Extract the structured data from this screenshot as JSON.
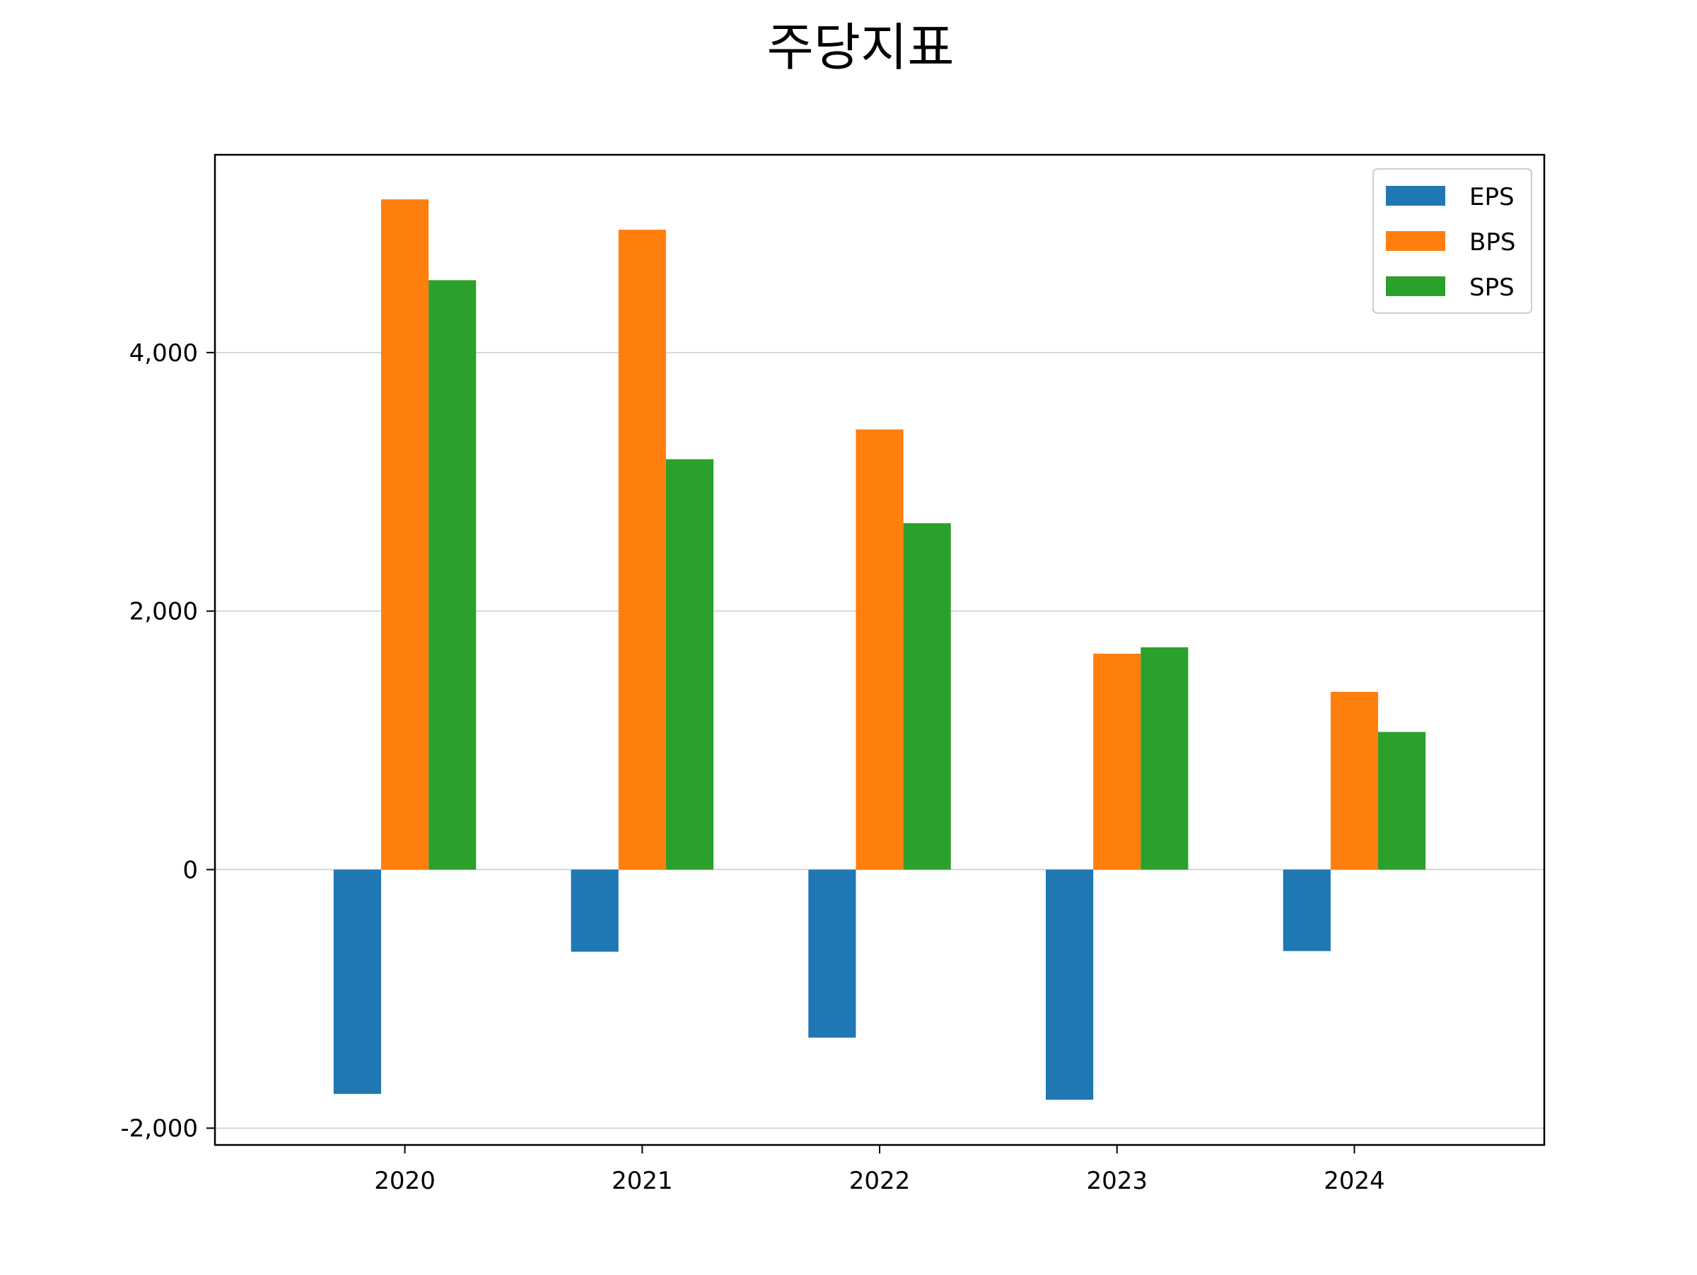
{
  "chart_data": {
    "type": "bar",
    "title": "주당지표",
    "xlabel": "",
    "ylabel": "",
    "categories": [
      "2020",
      "2021",
      "2022",
      "2023",
      "2024"
    ],
    "series": [
      {
        "name": "EPS",
        "color": "#1f77b4",
        "values": [
          -1735,
          -635,
          -1300,
          -1780,
          -630
        ]
      },
      {
        "name": "BPS",
        "color": "#ff7f0e",
        "values": [
          5185,
          4950,
          3405,
          1670,
          1375
        ]
      },
      {
        "name": "SPS",
        "color": "#2ca02c",
        "values": [
          4560,
          3175,
          2680,
          1720,
          1065
        ]
      }
    ],
    "ylim": [
      -2130,
      5530
    ],
    "yticks": [
      -2000,
      0,
      2000,
      4000
    ],
    "ytick_labels": [
      "-2,000",
      "0",
      "2,000",
      "4,000"
    ],
    "grid": "horizontal",
    "legend_position": "top-right"
  }
}
